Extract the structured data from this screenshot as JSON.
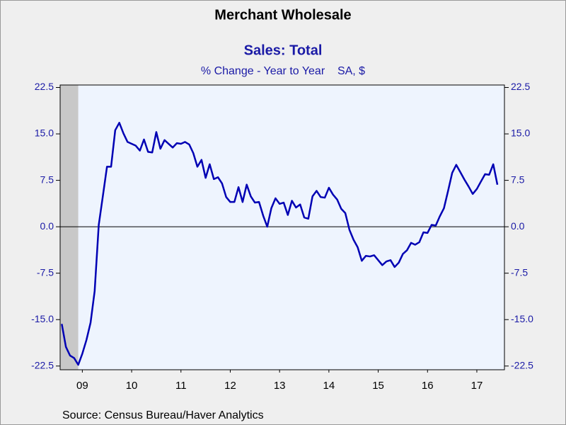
{
  "chart_data": {
    "type": "line",
    "title": "Merchant Wholesale",
    "subtitle": "Sales: Total",
    "subtitle2": "% Change - Year to Year    SA, $",
    "source": "Source:  Census Bureau/Haver Analytics",
    "x": [
      2009.083,
      2009.167,
      2009.25,
      2009.333,
      2009.417,
      2009.5,
      2009.583,
      2009.667,
      2009.75,
      2009.833,
      2009.917,
      2010.0,
      2010.083,
      2010.167,
      2010.25,
      2010.333,
      2010.417,
      2010.5,
      2010.583,
      2010.667,
      2010.75,
      2010.833,
      2010.917,
      2011.0,
      2011.083,
      2011.167,
      2011.25,
      2011.333,
      2011.417,
      2011.5,
      2011.583,
      2011.667,
      2011.75,
      2011.833,
      2011.917,
      2012.0,
      2012.083,
      2012.167,
      2012.25,
      2012.333,
      2012.417,
      2012.5,
      2012.583,
      2012.667,
      2012.75,
      2012.833,
      2012.917,
      2013.0,
      2013.083,
      2013.167,
      2013.25,
      2013.333,
      2013.417,
      2013.5,
      2013.583,
      2013.667,
      2013.75,
      2013.833,
      2013.917,
      2014.0,
      2014.083,
      2014.167,
      2014.25,
      2014.333,
      2014.417,
      2014.5,
      2014.583,
      2014.667,
      2014.75,
      2014.833,
      2014.917,
      2015.0,
      2015.083,
      2015.167,
      2015.25,
      2015.333,
      2015.417,
      2015.5,
      2015.583,
      2015.667,
      2015.75,
      2015.833,
      2015.917,
      2016.0,
      2016.083,
      2016.167,
      2016.25,
      2016.333,
      2016.417,
      2016.5,
      2016.583,
      2016.667,
      2016.75,
      2016.833,
      2016.917,
      2017.0,
      2017.083,
      2017.167,
      2017.25,
      2017.333,
      2017.417,
      2017.5,
      2017.583,
      2017.667,
      2017.75,
      2017.833,
      2017.917
    ],
    "series": [
      {
        "name": "Sales: Total",
        "color": "#0000b4",
        "values": [
          -15.7,
          -19.4,
          -20.8,
          -21.2,
          -22.3,
          -20.5,
          -18.3,
          -15.5,
          -10.4,
          0.3,
          5.0,
          9.7,
          9.7,
          15.6,
          16.8,
          15.1,
          13.7,
          13.4,
          13.1,
          12.3,
          14.1,
          12.1,
          12.0,
          15.3,
          12.6,
          14.0,
          13.4,
          12.8,
          13.5,
          13.4,
          13.7,
          13.3,
          11.9,
          9.7,
          10.8,
          7.9,
          10.1,
          7.7,
          8.0,
          7.0,
          4.8,
          4.0,
          4.0,
          6.4,
          4.0,
          6.8,
          4.9,
          3.9,
          4.0,
          1.8,
          0.0,
          3.0,
          4.6,
          3.7,
          3.9,
          1.9,
          4.2,
          3.1,
          3.6,
          1.5,
          1.3,
          4.9,
          5.8,
          4.8,
          4.7,
          6.3,
          5.2,
          4.4,
          2.9,
          2.2,
          -0.5,
          -2.1,
          -3.3,
          -5.5,
          -4.7,
          -4.8,
          -4.6,
          -5.4,
          -6.2,
          -5.6,
          -5.4,
          -6.5,
          -5.8,
          -4.4,
          -3.8,
          -2.6,
          -2.9,
          -2.5,
          -0.9,
          -1.0,
          0.3,
          0.2,
          1.7,
          3.0,
          5.8,
          8.7,
          10.0,
          8.8,
          7.6,
          6.5,
          5.3,
          6.1,
          7.3,
          8.5,
          8.4,
          10.1,
          6.8
        ]
      }
    ],
    "xlim": [
      2009.05,
      2018.06
    ],
    "xticks": [
      {
        "value": 2009.5,
        "label": "09"
      },
      {
        "value": 2010.5,
        "label": "10"
      },
      {
        "value": 2011.5,
        "label": "11"
      },
      {
        "value": 2012.5,
        "label": "12"
      },
      {
        "value": 2013.5,
        "label": "13"
      },
      {
        "value": 2014.5,
        "label": "14"
      },
      {
        "value": 2015.5,
        "label": "15"
      },
      {
        "value": 2016.5,
        "label": "16"
      },
      {
        "value": 2017.5,
        "label": "17"
      }
    ],
    "ylim": [
      -23.1,
      22.9
    ],
    "yticks": [
      22.5,
      {
        "value": 15,
        "label": "15.0"
      },
      7.5,
      {
        "value": 0,
        "label": "0.0"
      },
      -7.5,
      {
        "value": -15,
        "label": "-15.0"
      },
      -22.5
    ],
    "recession_shading": {
      "from": 2009.05,
      "to": 2009.417,
      "color": "#c8c8c8"
    },
    "plot_background": "#eef4fe"
  }
}
